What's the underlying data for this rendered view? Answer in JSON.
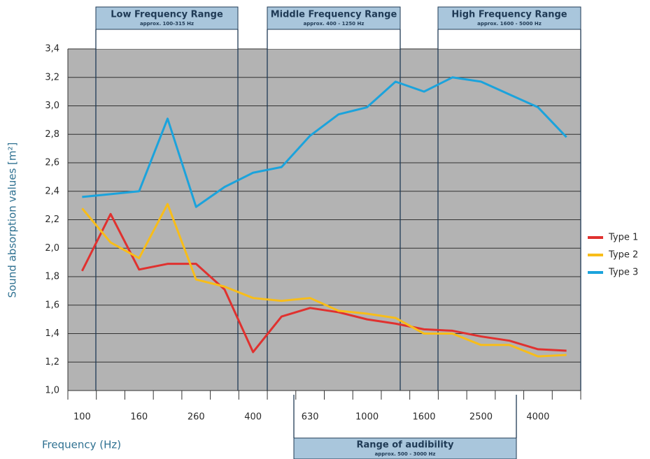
{
  "chart_data": {
    "type": "line",
    "ylabel": "Sound absorption values [m²]",
    "xlabel": "Frequency (Hz)",
    "categories": [
      "100",
      null,
      "160",
      null,
      "260",
      null,
      "400",
      null,
      "630",
      null,
      "1000",
      null,
      "1600",
      null,
      "2500",
      null,
      "4000",
      null
    ],
    "series": [
      {
        "name": "Type 1",
        "color": "#e0312f",
        "values": [
          1.84,
          2.24,
          1.85,
          1.89,
          1.89,
          1.71,
          1.27,
          1.52,
          1.58,
          1.55,
          1.5,
          1.47,
          1.43,
          1.42,
          1.38,
          1.35,
          1.29,
          1.28
        ]
      },
      {
        "name": "Type 2",
        "color": "#f8bd19",
        "values": [
          2.28,
          2.04,
          1.93,
          2.31,
          1.78,
          1.73,
          1.65,
          1.63,
          1.65,
          1.56,
          1.54,
          1.51,
          1.4,
          1.4,
          1.32,
          1.32,
          1.24,
          1.25
        ]
      },
      {
        "name": "Type 3",
        "color": "#1ba3dc",
        "values": [
          2.36,
          2.38,
          2.4,
          2.91,
          2.29,
          2.43,
          2.53,
          2.57,
          2.79,
          2.94,
          2.99,
          3.17,
          3.1,
          3.2,
          3.17,
          3.08,
          2.99,
          2.78
        ]
      }
    ],
    "ylim": [
      1.0,
      3.4
    ],
    "yticks": [
      {
        "value": 1.0,
        "label": "1,0"
      },
      {
        "value": 1.2,
        "label": "1,2"
      },
      {
        "value": 1.4,
        "label": "1,4"
      },
      {
        "value": 1.6,
        "label": "1,6"
      },
      {
        "value": 1.8,
        "label": "1,8"
      },
      {
        "value": 2.0,
        "label": "2,0"
      },
      {
        "value": 2.2,
        "label": "2,2"
      },
      {
        "value": 2.4,
        "label": "2,4"
      },
      {
        "value": 2.6,
        "label": "2,6"
      },
      {
        "value": 2.8,
        "label": "2,8"
      },
      {
        "value": 3.0,
        "label": "3,0"
      },
      {
        "value": 3.2,
        "label": "3,2"
      },
      {
        "value": 3.4,
        "label": "3,4"
      }
    ],
    "grid": true,
    "legend": "right",
    "ranges": [
      {
        "title": "Low Frequency Range",
        "subtitle": "approx. 100-315 Hz"
      },
      {
        "title": "Middle Frequency Range",
        "subtitle": "approx. 400 - 1250 Hz"
      },
      {
        "title": "High Frequency Range",
        "subtitle": "approx. 1600 - 5000 Hz"
      }
    ],
    "audibility": {
      "title": "Range of audibility",
      "subtitle": "approx. 500 - 3000 Hz"
    }
  }
}
